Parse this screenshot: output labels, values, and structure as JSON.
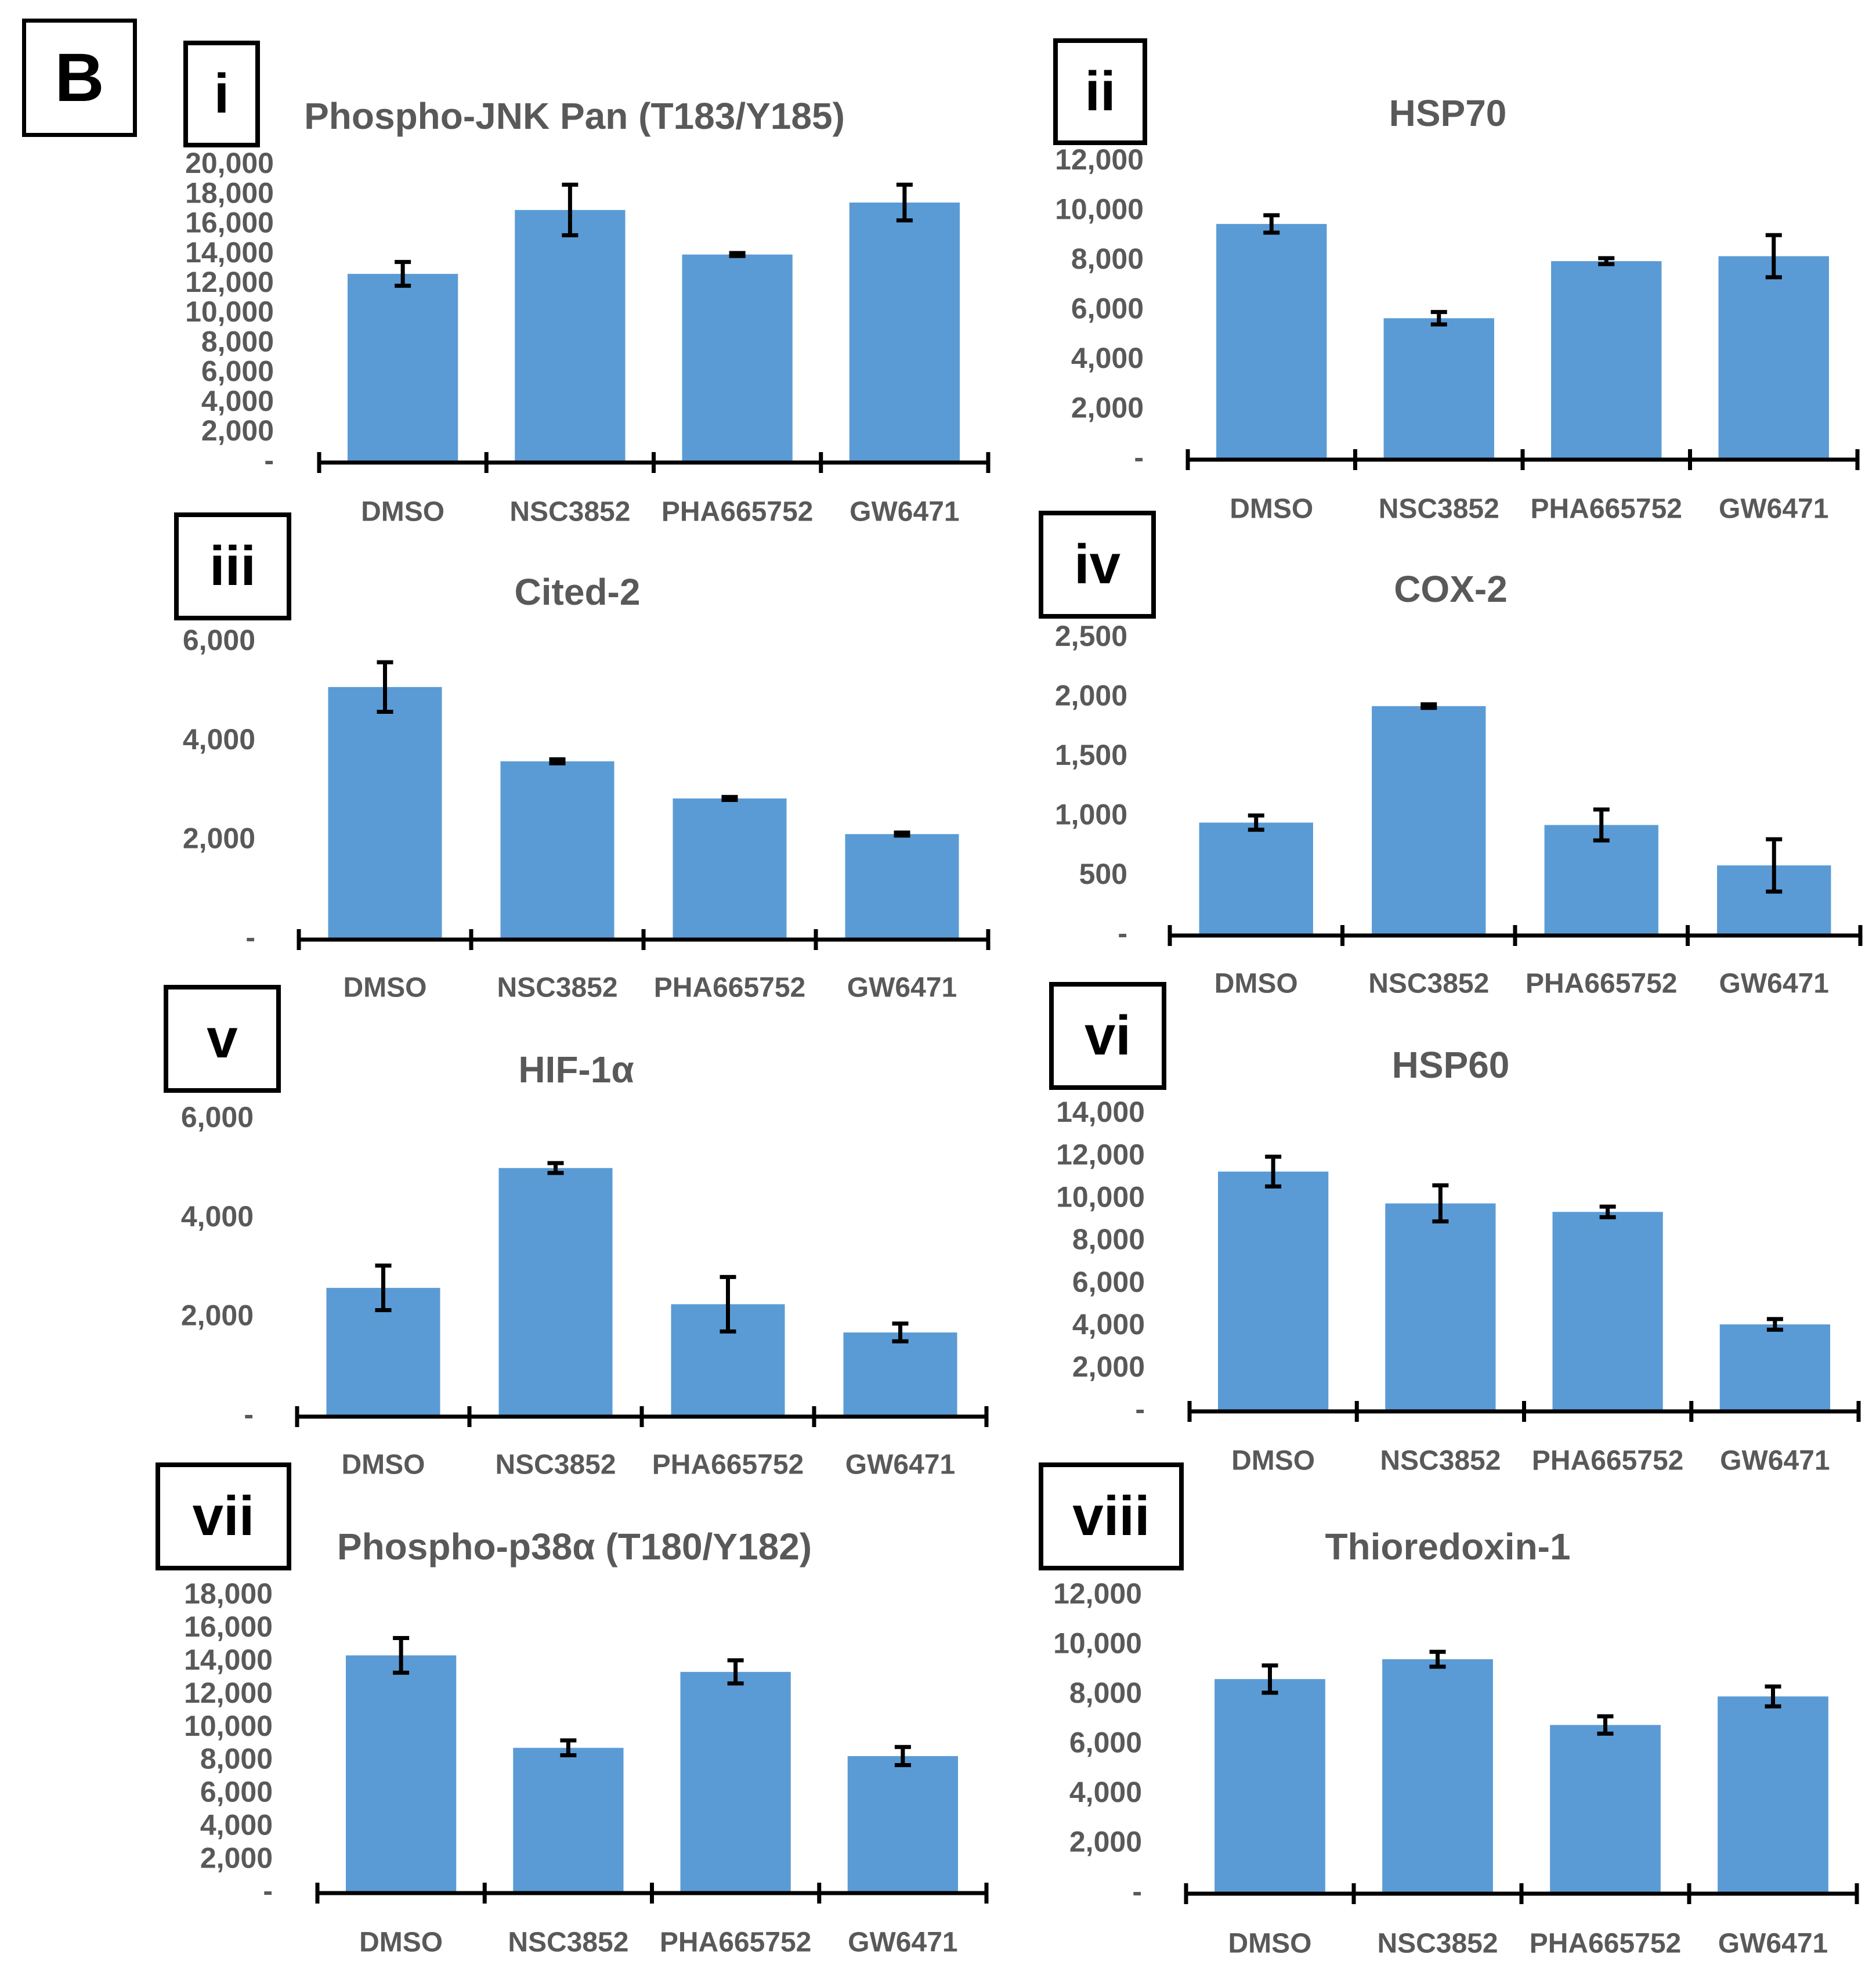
{
  "figure_label": "B",
  "colors": {
    "bar": "#5B9BD5",
    "text": "#595959",
    "axis": "#000000"
  },
  "chart_data": [
    {
      "type": "bar",
      "panel": "i",
      "title": "Phospho-JNK Pan (T183/Y185)",
      "categories": [
        "DMSO",
        "NSC3852",
        "PHA665752",
        "GW6471"
      ],
      "values": [
        12700,
        17000,
        14000,
        17500
      ],
      "errors": [
        800,
        1700,
        100,
        1200
      ],
      "ylim": [
        0,
        20000
      ],
      "yticks": [
        "-",
        "2,000",
        "4,000",
        "6,000",
        "8,000",
        "10,000",
        "12,000",
        "14,000",
        "16,000",
        "18,000",
        "20,000"
      ]
    },
    {
      "type": "bar",
      "panel": "ii",
      "title": "HSP70",
      "categories": [
        "DMSO",
        "NSC3852",
        "PHA665752",
        "GW6471"
      ],
      "values": [
        9500,
        5700,
        8000,
        8200
      ],
      "errors": [
        350,
        250,
        120,
        850
      ],
      "ylim": [
        0,
        12000
      ],
      "yticks": [
        "-",
        "2,000",
        "4,000",
        "6,000",
        "8,000",
        "10,000",
        "12,000"
      ]
    },
    {
      "type": "bar",
      "panel": "iii",
      "title": "Cited-2",
      "categories": [
        "DMSO",
        "NSC3852",
        "PHA665752",
        "GW6471"
      ],
      "values": [
        5100,
        3600,
        2850,
        2130
      ],
      "errors": [
        500,
        40,
        30,
        30
      ],
      "ylim": [
        0,
        6000
      ],
      "yticks": [
        "-",
        "2,000",
        "4,000",
        "6,000"
      ]
    },
    {
      "type": "bar",
      "panel": "iv",
      "title": "COX-2",
      "categories": [
        "DMSO",
        "NSC3852",
        "PHA665752",
        "GW6471"
      ],
      "values": [
        950,
        1930,
        930,
        590
      ],
      "errors": [
        60,
        15,
        130,
        220
      ],
      "ylim": [
        0,
        2500
      ],
      "yticks": [
        "-",
        "500",
        "1,000",
        "1,500",
        "2,000",
        "2,500"
      ]
    },
    {
      "type": "bar",
      "panel": "v",
      "title": "HIF-1α",
      "categories": [
        "DMSO",
        "NSC3852",
        "PHA665752",
        "GW6471"
      ],
      "values": [
        2600,
        5020,
        2270,
        1700
      ],
      "errors": [
        450,
        100,
        550,
        180
      ],
      "ylim": [
        0,
        6000
      ],
      "yticks": [
        "-",
        "2,000",
        "4,000",
        "6,000"
      ]
    },
    {
      "type": "bar",
      "panel": "vi",
      "title": "HSP60",
      "categories": [
        "DMSO",
        "NSC3852",
        "PHA665752",
        "GW6471"
      ],
      "values": [
        11300,
        9800,
        9400,
        4100
      ],
      "errors": [
        700,
        850,
        250,
        250
      ],
      "ylim": [
        0,
        14000
      ],
      "yticks": [
        "-",
        "2,000",
        "4,000",
        "6,000",
        "8,000",
        "10,000",
        "12,000",
        "14,000"
      ]
    },
    {
      "type": "bar",
      "panel": "vii",
      "title": "Phospho-p38α (T180/Y182)",
      "categories": [
        "DMSO",
        "NSC3852",
        "PHA665752",
        "GW6471"
      ],
      "values": [
        14400,
        8800,
        13400,
        8300
      ],
      "errors": [
        1050,
        450,
        700,
        550
      ],
      "ylim": [
        0,
        18000
      ],
      "yticks": [
        "-",
        "2,000",
        "4,000",
        "6,000",
        "8,000",
        "10,000",
        "12,000",
        "14,000",
        "16,000",
        "18,000"
      ]
    },
    {
      "type": "bar",
      "panel": "viii",
      "title": "Thioredoxin-1",
      "categories": [
        "DMSO",
        "NSC3852",
        "PHA665752",
        "GW6471"
      ],
      "values": [
        8650,
        9450,
        6800,
        7950
      ],
      "errors": [
        550,
        300,
        350,
        400
      ],
      "ylim": [
        0,
        12000
      ],
      "yticks": [
        "-",
        "2,000",
        "4,000",
        "6,000",
        "8,000",
        "10,000",
        "12,000"
      ]
    }
  ]
}
